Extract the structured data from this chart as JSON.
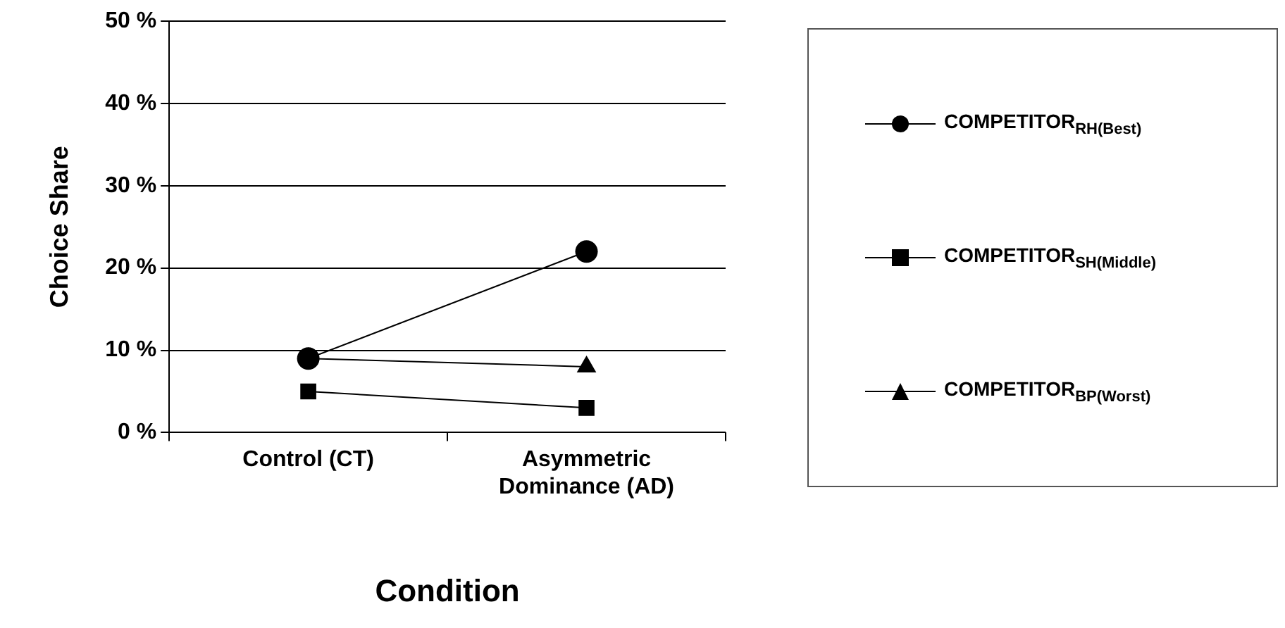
{
  "chart_data": {
    "type": "line",
    "xlabel": "Condition",
    "ylabel": "Choice Share",
    "categories": [
      "Control (CT)",
      "Asymmetric Dominance (AD)"
    ],
    "series": [
      {
        "name": "COMPETITOR$_{RH(Best)}$",
        "color": "#000000",
        "marker": "circle",
        "values": [
          9,
          22
        ]
      },
      {
        "name": "COMPETITOR$_{SH(Middle)}$",
        "color": "#000000",
        "marker": "square",
        "values": [
          5,
          3
        ]
      },
      {
        "name": "COMPETITOR$_{BP(Worst)}$",
        "color": "#000000",
        "marker": "triangle",
        "values": [
          9,
          8
        ]
      }
    ],
    "ylim": [
      0,
      50
    ],
    "yticks": [
      {
        "value": 0,
        "label": "0 %"
      },
      {
        "value": 10,
        "label": "10 %"
      },
      {
        "value": 20,
        "label": "20 %"
      },
      {
        "value": 30,
        "label": "30 %"
      },
      {
        "value": 40,
        "label": "40 %"
      },
      {
        "value": 50,
        "label": "50 %"
      }
    ],
    "grid": "y",
    "legend": "right",
    "line_style": "solid"
  }
}
